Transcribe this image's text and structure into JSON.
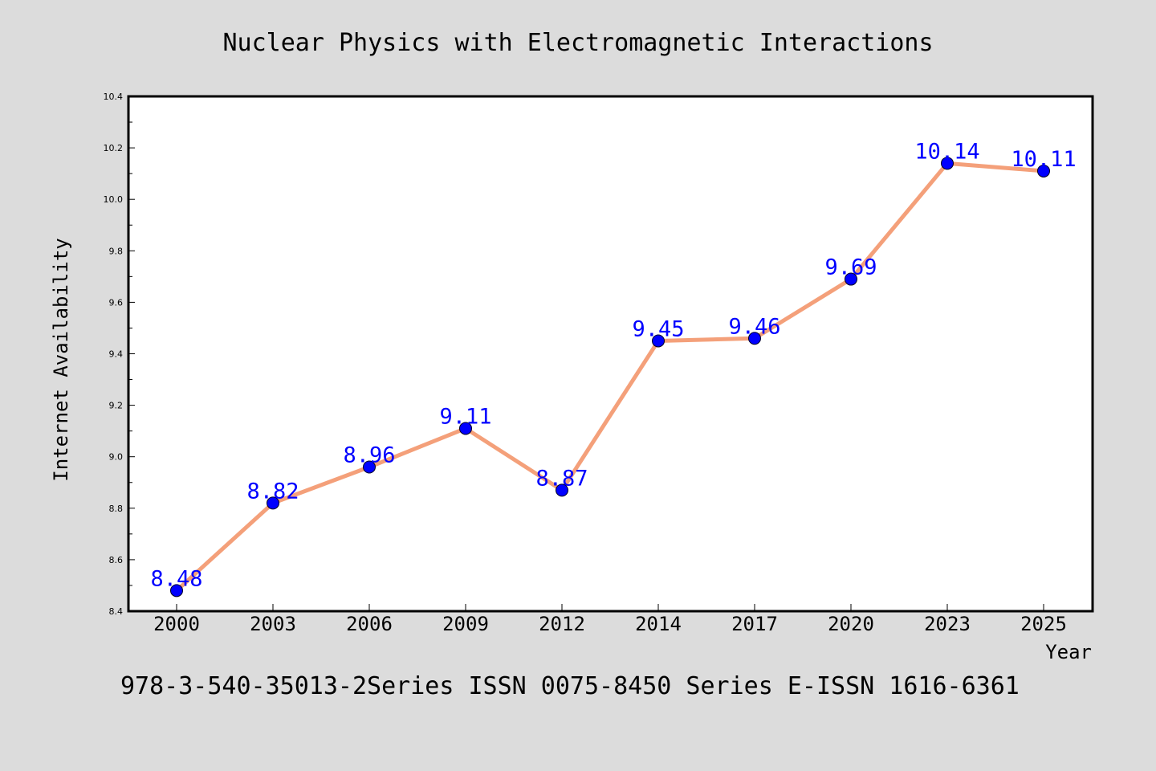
{
  "chart_data": {
    "type": "line",
    "title": "Nuclear Physics with Electromagnetic Interactions",
    "xlabel": "Year",
    "ylabel": "Internet Availability",
    "categories": [
      "2000",
      "2003",
      "2006",
      "2009",
      "2012",
      "2014",
      "2017",
      "2020",
      "2023",
      "2025"
    ],
    "series": [
      {
        "values": [
          8.48,
          8.82,
          8.96,
          9.11,
          8.87,
          9.45,
          9.46,
          9.69,
          10.14,
          10.11
        ],
        "data_labels": [
          "8.48",
          "8.82",
          "8.96",
          "9.11",
          "8.87",
          "9.45",
          "9.46",
          "9.69",
          "10.14",
          "10.11"
        ],
        "line_color": "#f4a07a",
        "marker_color": "#0000ff"
      }
    ],
    "ylim": [
      8.4,
      10.4
    ],
    "yticks": [
      "8.4",
      "8.6",
      "8.8",
      "9.0",
      "9.2",
      "9.4",
      "9.6",
      "9.8",
      "10.0",
      "10.2",
      "10.4"
    ],
    "grid": false,
    "plot_background": "#ffffff",
    "figure_background": "#dcdcdc"
  },
  "footer": {
    "text": "978-3-540-35013-2Series ISSN 0075-8450 Series E-ISSN 1616-6361"
  }
}
